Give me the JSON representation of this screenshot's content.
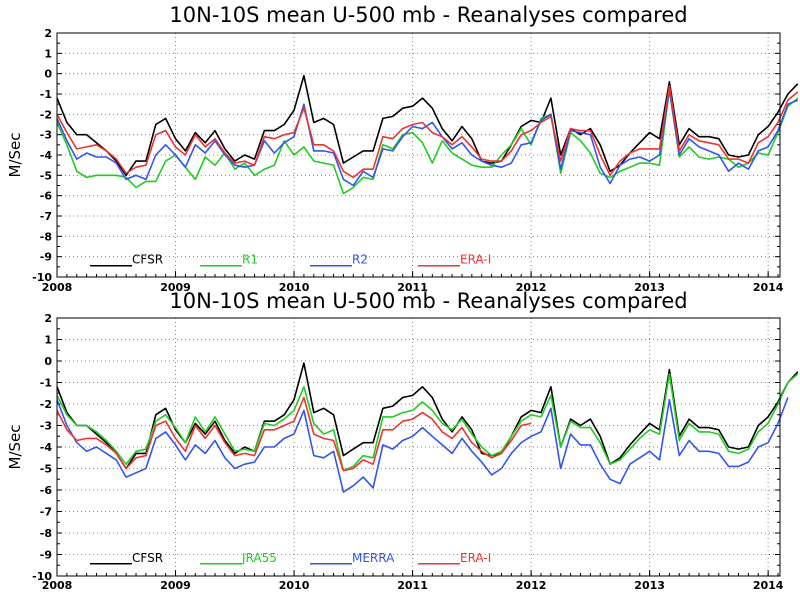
{
  "chart_data": [
    {
      "type": "line",
      "title": "10N-10S mean U-500 mb - Reanalyses compared",
      "ylabel": "M/Sec",
      "xlabel": "",
      "ylim": [
        -10,
        2
      ],
      "xlim": [
        2008.0,
        2014.1
      ],
      "grid": true,
      "legend_placement": "bottom-left",
      "x_ticks": [
        "2008",
        "2009",
        "2010",
        "2011",
        "2012",
        "2013",
        "2014"
      ],
      "y_ticks": [
        "2",
        "1",
        "0",
        "-1",
        "-2",
        "-3",
        "-4",
        "-5",
        "-6",
        "-7",
        "-8",
        "-9",
        "-10"
      ],
      "x_start": 2008.0,
      "x_step_months": 1,
      "series": [
        {
          "name": "CFSR",
          "color": "#000000",
          "values": [
            -1.2,
            -2.4,
            -3.0,
            -3.0,
            -3.4,
            -3.8,
            -4.3,
            -5.0,
            -4.3,
            -4.3,
            -2.5,
            -2.2,
            -3.2,
            -3.8,
            -2.9,
            -3.4,
            -2.8,
            -3.7,
            -4.3,
            -4.0,
            -4.2,
            -2.8,
            -2.8,
            -2.5,
            -1.8,
            -0.1,
            -2.4,
            -2.2,
            -2.5,
            -4.4,
            -4.1,
            -3.8,
            -3.8,
            -2.2,
            -2.1,
            -1.7,
            -1.6,
            -1.2,
            -1.7,
            -2.7,
            -3.3,
            -2.6,
            -3.2,
            -4.3,
            -4.4,
            -4.3,
            -3.5,
            -2.6,
            -2.3,
            -2.4,
            -1.2,
            -4.0,
            -2.7,
            -3.0,
            -2.7,
            -3.5,
            -4.8,
            -4.5,
            -3.9,
            -3.4,
            -2.9,
            -3.2,
            -0.4,
            -3.5,
            -2.7,
            -3.1,
            -3.1,
            -3.2,
            -4.0,
            -4.1,
            -4.0,
            -3.0,
            -2.6,
            -1.9,
            -1.0,
            -0.5
          ]
        },
        {
          "name": "R1",
          "color": "#22cc22",
          "values": [
            -2.4,
            -3.5,
            -4.8,
            -5.1,
            -5.0,
            -5.0,
            -5.0,
            -5.1,
            -5.6,
            -5.3,
            -5.3,
            -4.3,
            -4.0,
            -4.6,
            -5.2,
            -4.1,
            -4.5,
            -3.9,
            -4.7,
            -4.4,
            -5.0,
            -4.7,
            -4.5,
            -3.3,
            -4.0,
            -3.6,
            -4.3,
            -4.4,
            -4.5,
            -5.9,
            -5.6,
            -5.1,
            -5.2,
            -3.5,
            -3.7,
            -3.0,
            -2.9,
            -3.4,
            -4.4,
            -3.3,
            -3.9,
            -4.2,
            -4.5,
            -4.6,
            -4.6,
            -4.0,
            -3.5,
            -2.7,
            -3.5,
            -2.2,
            -2.0,
            -4.9,
            -2.9,
            -3.3,
            -3.9,
            -4.9,
            -5.1,
            -4.8,
            -4.6,
            -4.4,
            -4.4,
            -4.5,
            -0.8,
            -4.1,
            -3.6,
            -4.1,
            -4.2,
            -4.1,
            -4.2,
            -4.6,
            -4.4,
            -3.9,
            -4.0,
            -2.9,
            -1.6,
            -1.2
          ]
        },
        {
          "name": "R2",
          "color": "#3355ee",
          "values": [
            -2.2,
            -3.3,
            -4.2,
            -3.9,
            -4.1,
            -4.1,
            -4.4,
            -5.2,
            -5.0,
            -5.2,
            -4.0,
            -3.5,
            -4.0,
            -4.6,
            -3.5,
            -3.9,
            -3.3,
            -4.0,
            -4.5,
            -4.6,
            -4.5,
            -3.3,
            -3.9,
            -3.4,
            -3.1,
            -1.5,
            -3.8,
            -3.8,
            -3.9,
            -5.2,
            -5.5,
            -4.8,
            -5.1,
            -3.7,
            -3.8,
            -3.1,
            -2.6,
            -2.7,
            -2.4,
            -3.1,
            -3.7,
            -3.4,
            -4.0,
            -4.3,
            -4.5,
            -4.6,
            -4.4,
            -3.5,
            -3.4,
            -2.3,
            -2.0,
            -4.7,
            -2.8,
            -2.9,
            -3.0,
            -4.6,
            -5.4,
            -4.5,
            -4.2,
            -4.1,
            -4.3,
            -4.0,
            -0.8,
            -4.0,
            -3.2,
            -3.6,
            -3.8,
            -4.0,
            -4.8,
            -4.4,
            -4.7,
            -3.8,
            -3.6,
            -2.8,
            -1.5,
            -1.3
          ]
        },
        {
          "name": "ERA-I",
          "color": "#ee3333",
          "values": [
            -2.0,
            -2.9,
            -3.7,
            -3.6,
            -3.5,
            -3.8,
            -4.2,
            -4.9,
            -4.6,
            -4.5,
            -3.0,
            -2.8,
            -3.6,
            -4.0,
            -3.0,
            -3.6,
            -3.2,
            -3.9,
            -4.4,
            -4.3,
            -4.5,
            -3.1,
            -3.2,
            -3.0,
            -2.9,
            -1.7,
            -3.5,
            -3.5,
            -3.8,
            -4.8,
            -5.1,
            -4.7,
            -4.7,
            -3.1,
            -3.2,
            -2.7,
            -2.5,
            -2.4,
            -2.9,
            -3.1,
            -3.5,
            -3.1,
            -3.6,
            -4.2,
            -4.3,
            -4.3,
            -3.8,
            -3.0,
            -2.8,
            -2.4,
            -2.1,
            -4.3,
            -2.7,
            -2.8,
            -2.8,
            -4.0,
            -5.0,
            -4.3,
            -3.9,
            -3.7,
            -3.7,
            -3.7,
            -0.6,
            -3.8,
            -3.0,
            -3.3,
            -3.4,
            -3.5,
            -4.2,
            -4.2,
            -4.4,
            -3.4,
            -3.1,
            -2.4,
            -1.3,
            -0.9
          ]
        }
      ]
    },
    {
      "type": "line",
      "title": "10N-10S mean U-500 mb - Reanalyses compared",
      "ylabel": "M/Sec",
      "xlabel": "",
      "ylim": [
        -10,
        2
      ],
      "xlim": [
        2008.0,
        2014.1
      ],
      "grid": true,
      "legend_placement": "bottom-left",
      "x_ticks": [
        "2008",
        "2009",
        "2010",
        "2011",
        "2012",
        "2013",
        "2014"
      ],
      "y_ticks": [
        "2",
        "1",
        "0",
        "-1",
        "-2",
        "-3",
        "-4",
        "-5",
        "-6",
        "-7",
        "-8",
        "-9",
        "-10"
      ],
      "x_start": 2008.0,
      "x_step_months": 1,
      "series": [
        {
          "name": "CFSR",
          "color": "#000000",
          "values": [
            -1.2,
            -2.4,
            -3.0,
            -3.0,
            -3.4,
            -3.8,
            -4.3,
            -5.0,
            -4.3,
            -4.3,
            -2.5,
            -2.2,
            -3.2,
            -3.8,
            -2.9,
            -3.4,
            -2.8,
            -3.7,
            -4.3,
            -4.0,
            -4.2,
            -2.8,
            -2.8,
            -2.5,
            -1.8,
            -0.1,
            -2.4,
            -2.2,
            -2.5,
            -4.4,
            -4.1,
            -3.8,
            -3.8,
            -2.2,
            -2.1,
            -1.7,
            -1.6,
            -1.2,
            -1.7,
            -2.7,
            -3.3,
            -2.6,
            -3.2,
            -4.3,
            -4.4,
            -4.3,
            -3.5,
            -2.6,
            -2.3,
            -2.4,
            -1.2,
            -4.0,
            -2.7,
            -3.0,
            -2.7,
            -3.5,
            -4.8,
            -4.5,
            -3.9,
            -3.4,
            -2.9,
            -3.2,
            -0.4,
            -3.5,
            -2.7,
            -3.1,
            -3.1,
            -3.2,
            -4.0,
            -4.1,
            -4.0,
            -3.0,
            -2.6,
            -1.9,
            -1.0,
            -0.5
          ]
        },
        {
          "name": "JRA55",
          "color": "#22cc22",
          "values": [
            -1.6,
            -2.5,
            -3.0,
            -3.0,
            -3.3,
            -3.7,
            -4.2,
            -4.8,
            -4.2,
            -4.1,
            -2.8,
            -2.5,
            -3.1,
            -3.8,
            -2.6,
            -3.3,
            -2.6,
            -3.4,
            -4.2,
            -4.1,
            -4.2,
            -2.9,
            -3.0,
            -2.7,
            -2.3,
            -1.2,
            -2.9,
            -3.4,
            -3.2,
            -5.1,
            -4.9,
            -4.4,
            -4.5,
            -2.6,
            -2.6,
            -2.4,
            -2.3,
            -1.9,
            -2.3,
            -2.9,
            -3.2,
            -2.7,
            -3.4,
            -4.0,
            -4.4,
            -4.2,
            -3.5,
            -2.8,
            -2.5,
            -2.6,
            -1.6,
            -4.0,
            -2.8,
            -3.1,
            -3.1,
            -3.8,
            -4.8,
            -4.6,
            -4.1,
            -3.6,
            -3.2,
            -3.4,
            -0.6,
            -3.7,
            -2.9,
            -3.3,
            -3.3,
            -3.4,
            -4.2,
            -4.3,
            -4.1,
            -3.3,
            -2.9,
            -2.0,
            -1.0,
            -0.6
          ]
        },
        {
          "name": "MERRA",
          "color": "#3355ee",
          "values": [
            -1.8,
            -3.0,
            -3.8,
            -4.2,
            -4.0,
            -4.3,
            -4.6,
            -5.4,
            -5.2,
            -5.0,
            -3.6,
            -3.3,
            -3.9,
            -4.6,
            -3.9,
            -4.3,
            -3.7,
            -4.5,
            -5.0,
            -4.8,
            -4.7,
            -4.0,
            -4.0,
            -3.6,
            -3.4,
            -2.3,
            -4.4,
            -4.5,
            -4.2,
            -6.1,
            -5.8,
            -5.4,
            -5.9,
            -3.9,
            -4.1,
            -3.7,
            -3.5,
            -3.1,
            -3.5,
            -3.9,
            -4.3,
            -3.6,
            -4.2,
            -4.7,
            -5.3,
            -5.0,
            -4.3,
            -3.8,
            -3.5,
            -3.3,
            -2.2,
            -5.0,
            -3.4,
            -3.9,
            -3.9,
            -4.8,
            -5.5,
            -5.7,
            -4.8,
            -4.5,
            -4.2,
            -4.6,
            -1.8,
            -4.4,
            -3.7,
            -4.2,
            -4.2,
            -4.3,
            -4.9,
            -4.9,
            -4.7,
            -4.0,
            -3.8,
            -2.9,
            -1.7
          ]
        },
        {
          "name": "ERA-I",
          "color": "#ee3333",
          "values": [
            -2.3,
            -3.2,
            -3.7,
            -3.6,
            -3.6,
            -3.9,
            -4.3,
            -5.0,
            -4.5,
            -4.4,
            -3.0,
            -2.8,
            -3.6,
            -4.2,
            -3.0,
            -3.6,
            -3.0,
            -3.8,
            -4.4,
            -4.3,
            -4.4,
            -3.2,
            -3.2,
            -3.0,
            -2.8,
            -1.7,
            -3.4,
            -3.6,
            -3.7,
            -5.1,
            -5.0,
            -4.6,
            -4.8,
            -3.2,
            -3.2,
            -2.8,
            -2.7,
            -2.4,
            -2.7,
            -3.3,
            -3.6,
            -3.1,
            -3.8,
            -4.2,
            -4.5,
            -4.3,
            -3.7,
            -3.0,
            -2.9
          ]
        }
      ]
    }
  ]
}
